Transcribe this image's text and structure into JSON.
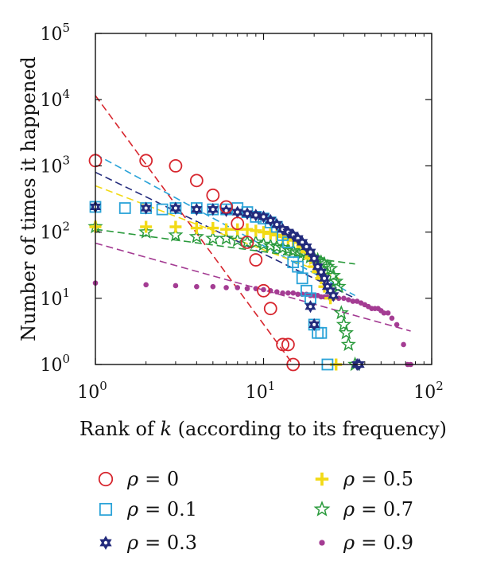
{
  "chart_data": {
    "type": "scatter",
    "title": "",
    "xlabel": "Rank of k (according to its frequency)",
    "xlabel_parts": [
      "Rank of ",
      "k",
      " (according to its frequency)"
    ],
    "ylabel": "Number of times it happened",
    "xscale": "log",
    "yscale": "log",
    "xlim": [
      1,
      100
    ],
    "ylim": [
      1,
      100000
    ],
    "grid": false,
    "legend_position": "bottom",
    "x_ticks": [
      {
        "value": 1,
        "base": "10",
        "exp": "0"
      },
      {
        "value": 10,
        "base": "10",
        "exp": "1"
      },
      {
        "value": 100,
        "base": "10",
        "exp": "2"
      }
    ],
    "y_ticks": [
      {
        "value": 1,
        "base": "10",
        "exp": "0"
      },
      {
        "value": 10,
        "base": "10",
        "exp": "1"
      },
      {
        "value": 100,
        "base": "10",
        "exp": "2"
      },
      {
        "value": 1000,
        "base": "10",
        "exp": "3"
      },
      {
        "value": 10000,
        "base": "10",
        "exp": "4"
      },
      {
        "value": 100000,
        "base": "10",
        "exp": "5"
      }
    ],
    "series": [
      {
        "name": "ρ = 0",
        "legend_symbol": "ρ",
        "legend_value": "= 0",
        "marker": "circle",
        "color": "#d7262e",
        "fit_line": {
          "x": [
            1,
            15
          ],
          "y": [
            11500,
            1.0
          ]
        },
        "points": [
          {
            "x": 1,
            "y": 1200
          },
          {
            "x": 2,
            "y": 1200
          },
          {
            "x": 3,
            "y": 1000
          },
          {
            "x": 4,
            "y": 600
          },
          {
            "x": 5,
            "y": 360
          },
          {
            "x": 6,
            "y": 240
          },
          {
            "x": 7,
            "y": 135
          },
          {
            "x": 8,
            "y": 70
          },
          {
            "x": 9,
            "y": 38
          },
          {
            "x": 10,
            "y": 13
          },
          {
            "x": 11,
            "y": 7
          },
          {
            "x": 13,
            "y": 2
          },
          {
            "x": 14,
            "y": 2
          },
          {
            "x": 15,
            "y": 1
          }
        ]
      },
      {
        "name": "ρ = 0.1",
        "legend_symbol": "ρ",
        "legend_value": "= 0.1",
        "marker": "square",
        "color": "#2aa3d8",
        "fit_line": {
          "x": [
            1,
            35
          ],
          "y": [
            1500,
            11
          ]
        },
        "points": [
          {
            "x": 1,
            "y": 240
          },
          {
            "x": 1.5,
            "y": 230
          },
          {
            "x": 2,
            "y": 230
          },
          {
            "x": 2.5,
            "y": 220
          },
          {
            "x": 3,
            "y": 230
          },
          {
            "x": 4,
            "y": 230
          },
          {
            "x": 5,
            "y": 220
          },
          {
            "x": 6,
            "y": 220
          },
          {
            "x": 7,
            "y": 230
          },
          {
            "x": 8,
            "y": 200
          },
          {
            "x": 9,
            "y": 170
          },
          {
            "x": 10,
            "y": 160
          },
          {
            "x": 11,
            "y": 140
          },
          {
            "x": 12,
            "y": 120
          },
          {
            "x": 13,
            "y": 90
          },
          {
            "x": 14,
            "y": 70
          },
          {
            "x": 15,
            "y": 35
          },
          {
            "x": 16,
            "y": 30
          },
          {
            "x": 17,
            "y": 20
          },
          {
            "x": 18,
            "y": 13
          },
          {
            "x": 19,
            "y": 10
          },
          {
            "x": 20,
            "y": 4
          },
          {
            "x": 21,
            "y": 3
          },
          {
            "x": 22,
            "y": 3
          },
          {
            "x": 24,
            "y": 1
          }
        ]
      },
      {
        "name": "ρ = 0.3",
        "legend_symbol": "ρ",
        "legend_value": "= 0.3",
        "marker": "hexstar",
        "color": "#232b7c",
        "fit_line": {
          "x": [
            1,
            35
          ],
          "y": [
            800,
            10
          ]
        },
        "points": [
          {
            "x": 1,
            "y": 240
          },
          {
            "x": 2,
            "y": 230
          },
          {
            "x": 3,
            "y": 230
          },
          {
            "x": 4,
            "y": 220
          },
          {
            "x": 5,
            "y": 220
          },
          {
            "x": 6,
            "y": 210
          },
          {
            "x": 7,
            "y": 200
          },
          {
            "x": 8,
            "y": 190
          },
          {
            "x": 9,
            "y": 180
          },
          {
            "x": 10,
            "y": 170
          },
          {
            "x": 11,
            "y": 150
          },
          {
            "x": 12,
            "y": 130
          },
          {
            "x": 13,
            "y": 110
          },
          {
            "x": 14,
            "y": 100
          },
          {
            "x": 15,
            "y": 90
          },
          {
            "x": 16,
            "y": 80
          },
          {
            "x": 17,
            "y": 70
          },
          {
            "x": 18,
            "y": 60
          },
          {
            "x": 19,
            "y": 50
          },
          {
            "x": 20,
            "y": 40
          },
          {
            "x": 21,
            "y": 30
          },
          {
            "x": 22,
            "y": 25
          },
          {
            "x": 23,
            "y": 20
          },
          {
            "x": 24,
            "y": 15
          },
          {
            "x": 25,
            "y": 13
          },
          {
            "x": 26,
            "y": 11
          },
          {
            "x": 19,
            "y": 7.5
          },
          {
            "x": 20,
            "y": 4
          },
          {
            "x": 36,
            "y": 1
          },
          {
            "x": 37,
            "y": 1
          }
        ]
      },
      {
        "name": "ρ = 0.5",
        "legend_symbol": "ρ",
        "legend_value": "= 0.5",
        "marker": "plus",
        "color": "#f2da16",
        "fit_line": {
          "x": [
            1,
            28
          ],
          "y": [
            500,
            20
          ]
        },
        "points": [
          {
            "x": 1,
            "y": 120
          },
          {
            "x": 2,
            "y": 120
          },
          {
            "x": 3,
            "y": 120
          },
          {
            "x": 4,
            "y": 115
          },
          {
            "x": 5,
            "y": 115
          },
          {
            "x": 6,
            "y": 110
          },
          {
            "x": 7,
            "y": 110
          },
          {
            "x": 8,
            "y": 110
          },
          {
            "x": 9,
            "y": 105
          },
          {
            "x": 10,
            "y": 100
          },
          {
            "x": 11,
            "y": 95
          },
          {
            "x": 12,
            "y": 90
          },
          {
            "x": 13,
            "y": 85
          },
          {
            "x": 14,
            "y": 80
          },
          {
            "x": 15,
            "y": 75
          },
          {
            "x": 16,
            "y": 70
          },
          {
            "x": 17,
            "y": 60
          },
          {
            "x": 18,
            "y": 50
          },
          {
            "x": 19,
            "y": 40
          },
          {
            "x": 20,
            "y": 30
          },
          {
            "x": 21,
            "y": 25
          },
          {
            "x": 22,
            "y": 20
          },
          {
            "x": 23,
            "y": 15
          },
          {
            "x": 25,
            "y": 10
          },
          {
            "x": 27,
            "y": 1
          }
        ]
      },
      {
        "name": "ρ = 0.7",
        "legend_symbol": "ρ",
        "legend_value": "= 0.7",
        "marker": "star",
        "color": "#2a9a3c",
        "fit_line": {
          "x": [
            1,
            35
          ],
          "y": [
            110,
            33
          ]
        },
        "points": [
          {
            "x": 1,
            "y": 120
          },
          {
            "x": 2,
            "y": 100
          },
          {
            "x": 3,
            "y": 90
          },
          {
            "x": 4,
            "y": 85
          },
          {
            "x": 5,
            "y": 80
          },
          {
            "x": 6,
            "y": 80
          },
          {
            "x": 7,
            "y": 75
          },
          {
            "x": 8,
            "y": 70
          },
          {
            "x": 9,
            "y": 70
          },
          {
            "x": 10,
            "y": 65
          },
          {
            "x": 11,
            "y": 62
          },
          {
            "x": 12,
            "y": 60
          },
          {
            "x": 13,
            "y": 58
          },
          {
            "x": 14,
            "y": 55
          },
          {
            "x": 15,
            "y": 52
          },
          {
            "x": 16,
            "y": 50
          },
          {
            "x": 17,
            "y": 48
          },
          {
            "x": 18,
            "y": 45
          },
          {
            "x": 19,
            "y": 42
          },
          {
            "x": 20,
            "y": 40
          },
          {
            "x": 21,
            "y": 38
          },
          {
            "x": 22,
            "y": 35
          },
          {
            "x": 23,
            "y": 33
          },
          {
            "x": 24,
            "y": 30
          },
          {
            "x": 25,
            "y": 28
          },
          {
            "x": 26,
            "y": 22
          },
          {
            "x": 27,
            "y": 18
          },
          {
            "x": 28,
            "y": 15
          },
          {
            "x": 29,
            "y": 6
          },
          {
            "x": 30,
            "y": 4
          },
          {
            "x": 31,
            "y": 3
          },
          {
            "x": 32,
            "y": 2
          },
          {
            "x": 35,
            "y": 1
          }
        ]
      },
      {
        "name": "ρ = 0.9",
        "legend_symbol": "ρ",
        "legend_value": "= 0.9",
        "marker": "dot",
        "color": "#a43c93",
        "fit_line": {
          "x": [
            1,
            75
          ],
          "y": [
            68,
            3.2
          ]
        },
        "points": [
          {
            "x": 1,
            "y": 17
          },
          {
            "x": 2,
            "y": 16
          },
          {
            "x": 3,
            "y": 15.5
          },
          {
            "x": 4,
            "y": 15
          },
          {
            "x": 5,
            "y": 15
          },
          {
            "x": 6,
            "y": 14.5
          },
          {
            "x": 7,
            "y": 14.5
          },
          {
            "x": 8,
            "y": 14
          },
          {
            "x": 9,
            "y": 14
          },
          {
            "x": 10,
            "y": 13.5
          },
          {
            "x": 11,
            "y": 13
          },
          {
            "x": 12,
            "y": 12.5
          },
          {
            "x": 13,
            "y": 12
          },
          {
            "x": 14,
            "y": 12
          },
          {
            "x": 15,
            "y": 12
          },
          {
            "x": 16,
            "y": 11.5
          },
          {
            "x": 17,
            "y": 11.5
          },
          {
            "x": 18,
            "y": 11.5
          },
          {
            "x": 19,
            "y": 11
          },
          {
            "x": 20,
            "y": 11
          },
          {
            "x": 21,
            "y": 11
          },
          {
            "x": 22,
            "y": 10.5
          },
          {
            "x": 23,
            "y": 10.5
          },
          {
            "x": 24,
            "y": 10.5
          },
          {
            "x": 25,
            "y": 10
          },
          {
            "x": 26,
            "y": 10
          },
          {
            "x": 28,
            "y": 10
          },
          {
            "x": 30,
            "y": 10
          },
          {
            "x": 32,
            "y": 9.5
          },
          {
            "x": 34,
            "y": 9
          },
          {
            "x": 36,
            "y": 9
          },
          {
            "x": 38,
            "y": 8.5
          },
          {
            "x": 40,
            "y": 8
          },
          {
            "x": 42,
            "y": 7.5
          },
          {
            "x": 44,
            "y": 7
          },
          {
            "x": 46,
            "y": 7
          },
          {
            "x": 48,
            "y": 7
          },
          {
            "x": 50,
            "y": 6.5
          },
          {
            "x": 52,
            "y": 6
          },
          {
            "x": 55,
            "y": 6
          },
          {
            "x": 58,
            "y": 5
          },
          {
            "x": 62,
            "y": 4
          },
          {
            "x": 68,
            "y": 2
          },
          {
            "x": 72,
            "y": 1
          },
          {
            "x": 75,
            "y": 1
          }
        ]
      }
    ]
  }
}
